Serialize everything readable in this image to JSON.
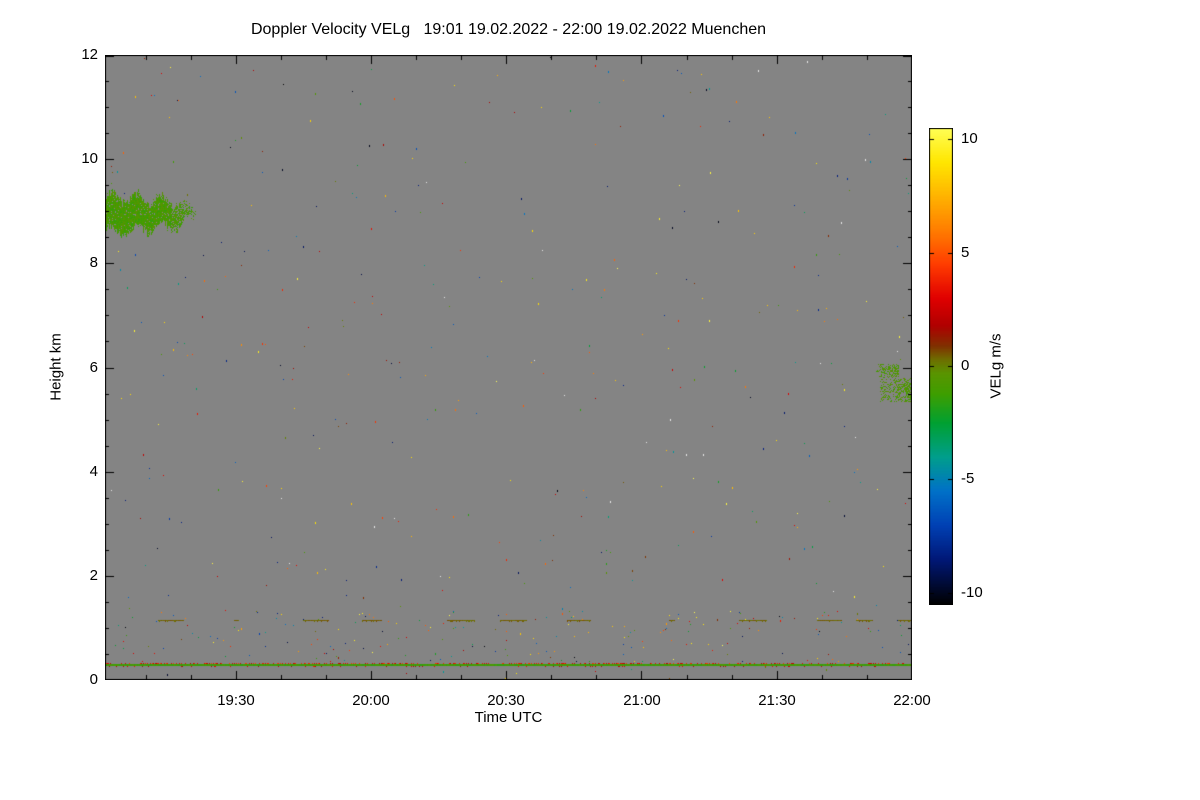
{
  "chart_data": {
    "type": "heatmap",
    "title": "Doppler Velocity VELg   19:01 19.02.2022 - 22:00 19.02.2022 Muenchen",
    "product": "Doppler Velocity VELg",
    "station": "Muenchen",
    "time_start": "19:01 19.02.2022",
    "time_end": "22:00 19.02.2022",
    "xlabel": "Time UTC",
    "ylabel": "Height km",
    "ylim_km": [
      0,
      12
    ],
    "duration_minutes": 179,
    "yticks": [
      0,
      2,
      4,
      6,
      8,
      10,
      12
    ],
    "xticks": [
      {
        "label": "19:30",
        "minute": 29
      },
      {
        "label": "20:00",
        "minute": 59
      },
      {
        "label": "20:30",
        "minute": 89
      },
      {
        "label": "21:00",
        "minute": 119
      },
      {
        "label": "21:30",
        "minute": 149
      },
      {
        "label": "22:00",
        "minute": 179
      }
    ],
    "xtick_minor_minutes": [
      9,
      19,
      39,
      49,
      69,
      79,
      99,
      109,
      129,
      139,
      159,
      169
    ],
    "nodata_color": "#848484",
    "colorbar": {
      "label": "VELg m/s",
      "ticks": [
        10,
        5,
        0,
        -5,
        -10
      ],
      "vmin": -10.5,
      "vmax": 10.5,
      "stops": [
        [
          10.5,
          "#ffff55"
        ],
        [
          9.0,
          "#ffe600"
        ],
        [
          7.5,
          "#ffb300"
        ],
        [
          6.0,
          "#ff7d00"
        ],
        [
          4.5,
          "#ff3c00"
        ],
        [
          3.0,
          "#e00000"
        ],
        [
          1.8,
          "#b00000"
        ],
        [
          0.9,
          "#803000"
        ],
        [
          0.3,
          "#6e6e00"
        ],
        [
          -0.3,
          "#5a9400"
        ],
        [
          -1.2,
          "#3f9e00"
        ],
        [
          -2.5,
          "#00a032"
        ],
        [
          -4.0,
          "#009e8c"
        ],
        [
          -5.5,
          "#0071c8"
        ],
        [
          -7.0,
          "#0041b4"
        ],
        [
          -8.5,
          "#001878"
        ],
        [
          -10.5,
          "#000000"
        ]
      ]
    },
    "features": {
      "clouds": [
        {
          "name": "left-cloud",
          "t_start": "19:01",
          "t_end": "19:21",
          "t_min": 0,
          "t_max": 20,
          "h_min_km": 8.55,
          "h_max_km": 9.35,
          "velocity_m_s": -0.9
        },
        {
          "name": "right-cloud-upper",
          "t_start": "21:52",
          "t_end": "21:57",
          "t_min": 171,
          "t_max": 176,
          "h_min_km": 5.82,
          "h_max_km": 6.06,
          "velocity_m_s": -0.7
        },
        {
          "name": "right-cloud-lower",
          "t_start": "21:53",
          "t_end": "22:00",
          "t_min": 172,
          "t_max": 179,
          "h_min_km": 5.35,
          "h_max_km": 5.8,
          "velocity_m_s": -0.7
        }
      ],
      "ground_line": {
        "h_km": 0.3,
        "t_min": 0,
        "t_max": 179,
        "description": "continuous near-ground echo line, green with orange/red speckles",
        "velocity_m_s_range": [
          -1.5,
          3.5
        ]
      },
      "dashed_line": {
        "h_km": 1.15,
        "description": "intermittent olive dashes across full time range",
        "velocity_m_s": 0.4
      },
      "noise": {
        "description": "sparse random colored speckle noise over gray no-data background",
        "count_total": 430,
        "count_low_band": 170,
        "low_band_h_km": [
          0.35,
          1.35
        ]
      }
    }
  }
}
